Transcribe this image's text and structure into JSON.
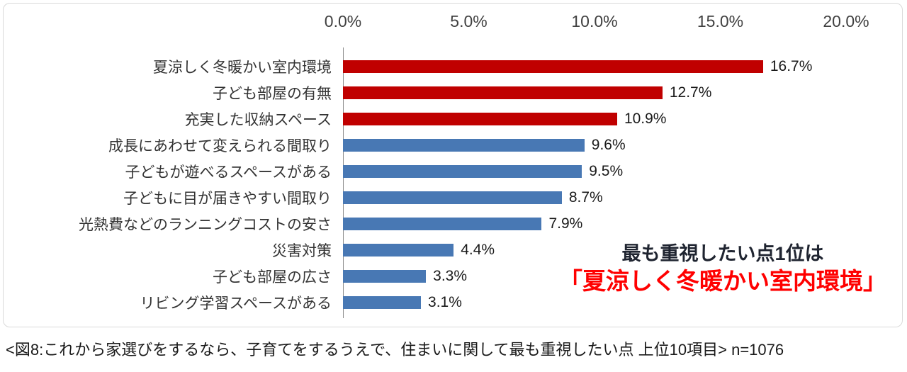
{
  "chart_data": {
    "type": "bar",
    "orientation": "horizontal",
    "title": "",
    "xlabel": "",
    "ylabel": "",
    "xlim": [
      0,
      20
    ],
    "grid": false,
    "x_ticks": [
      "0.0%",
      "5.0%",
      "10.0%",
      "15.0%",
      "20.0%"
    ],
    "categories": [
      "夏涼しく冬暖かい室内環境",
      "子ども部屋の有無",
      "充実した収納スペース",
      "成長にあわせて変えられる間取り",
      "子どもが遊べるスペースがある",
      "子どもに目が届きやすい間取り",
      "光熱費などのランニングコストの安さ",
      "災害対策",
      "子ども部屋の広さ",
      "リビング学習スペースがある"
    ],
    "values": [
      16.7,
      12.7,
      10.9,
      9.6,
      9.5,
      8.7,
      7.9,
      4.4,
      3.3,
      3.1
    ],
    "value_labels": [
      "16.7%",
      "12.7%",
      "10.9%",
      "9.6%",
      "9.5%",
      "8.7%",
      "7.9%",
      "4.4%",
      "3.3%",
      "3.1%"
    ],
    "bar_colors": [
      "#c00000",
      "#c00000",
      "#c00000",
      "#4878b4",
      "#4878b4",
      "#4878b4",
      "#4878b4",
      "#4878b4",
      "#4878b4",
      "#4878b4"
    ],
    "colors": {
      "highlight_red": "#c00000",
      "default_blue": "#4878b4",
      "annotation_red": "#ff0000",
      "axis_line": "#8c8c8c"
    },
    "annotation": {
      "line1": "最も重視したい点1位は",
      "line2": "「夏涼しく冬暖かい室内環境」"
    },
    "caption": "<図8:これから家選びをするなら、子育てをするうえで、住まいに関して最も重視したい点 上位10項目> n=1076"
  }
}
